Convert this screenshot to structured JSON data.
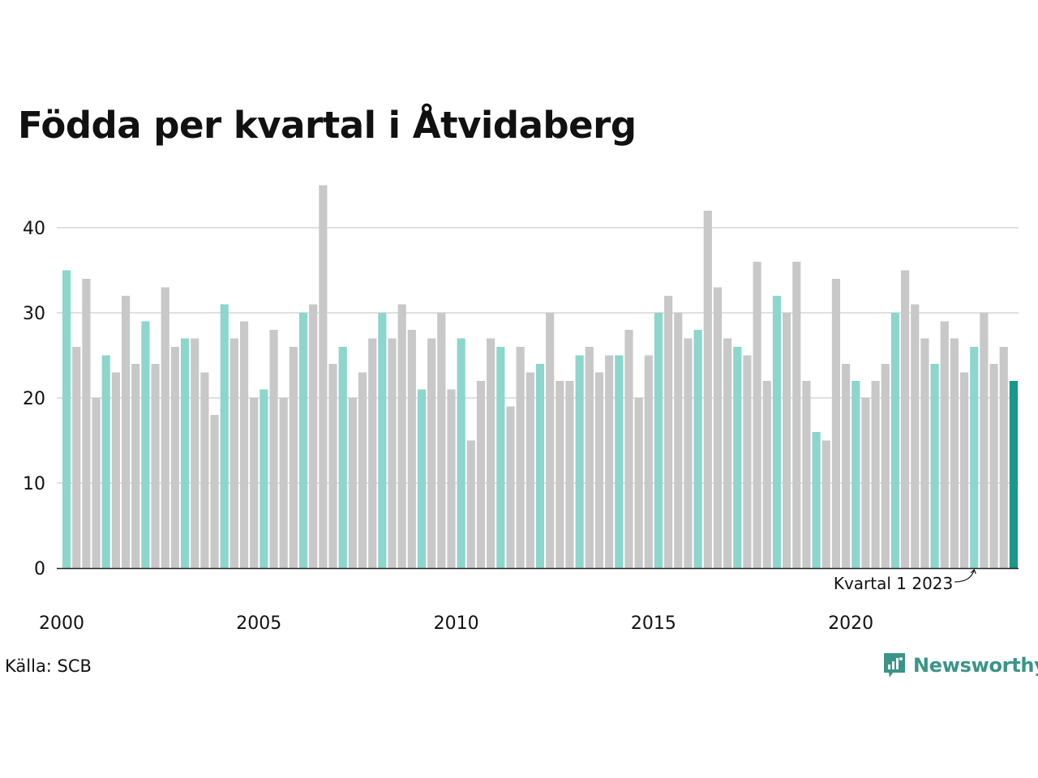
{
  "title": "Födda per kvartal i Åtvidaberg",
  "source": "Källa: SCB",
  "brand": {
    "name": "Newsworthy",
    "logo": "newsworthy-logo-icon"
  },
  "colors": {
    "q1": "#8cd6cc",
    "other": "#c8c8c8",
    "highlight": "#1a968a",
    "grid": "#e0e0e0",
    "axis": "#222222",
    "brand": "#3a9488"
  },
  "chart_data": {
    "type": "bar",
    "title": "Födda per kvartal i Åtvidaberg",
    "xlabel": "",
    "ylabel": "",
    "ylim": [
      0,
      45
    ],
    "yticks": [
      0,
      10,
      20,
      30,
      40
    ],
    "grid": true,
    "xtick_labels": [
      "2000",
      "2005",
      "2010",
      "2015",
      "2020"
    ],
    "start_year": 2000,
    "series": [
      {
        "values": [
          35,
          26,
          34,
          20,
          25,
          23,
          32,
          24,
          29,
          24,
          33,
          26,
          27,
          27,
          23,
          18,
          31,
          27,
          29,
          20,
          21,
          28,
          20,
          26,
          30,
          31,
          45,
          24,
          26,
          20,
          23,
          27,
          30,
          27,
          31,
          28,
          21,
          27,
          30,
          21,
          27,
          15,
          22,
          27,
          26,
          19,
          26,
          23,
          24,
          30,
          22,
          22,
          25,
          26,
          23,
          25,
          25,
          28,
          20,
          25,
          30,
          32,
          30,
          27,
          28,
          42,
          33,
          27,
          26,
          25,
          36,
          22,
          32,
          30,
          36,
          22,
          16,
          15,
          34,
          24,
          22,
          20,
          22,
          24,
          30,
          35,
          31,
          27,
          24,
          29,
          27,
          23,
          26,
          30,
          24,
          26,
          22
        ]
      }
    ],
    "annotation": {
      "text": "Kvartal 1 2023"
    }
  }
}
